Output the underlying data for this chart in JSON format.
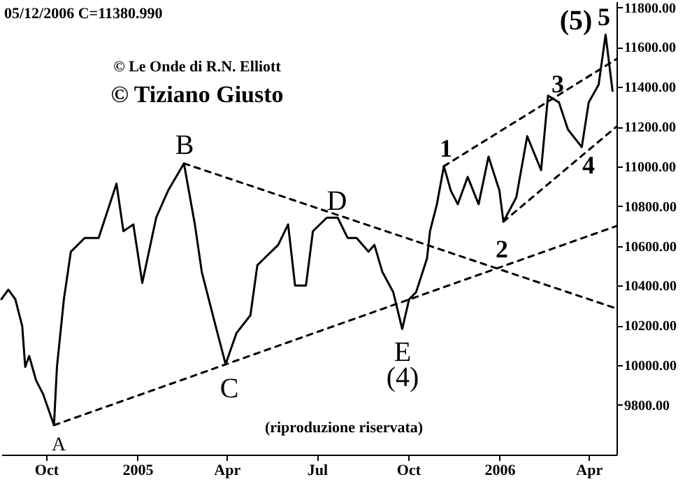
{
  "chart_data": {
    "type": "line",
    "title": "05/12/2006  C=11380.990",
    "annotations": [
      "© Le Onde di R.N. Elliott",
      "© Tiziano Giusto",
      "(riproduzione riservata)",
      "A",
      "B",
      "C",
      "D",
      "E",
      "(4)",
      "1",
      "2",
      "3",
      "4",
      "(5)",
      "5"
    ],
    "xlim": [
      "2004-08-17",
      "2006-04-29"
    ],
    "xticks": [
      {
        "value": "2004-10-01",
        "label": "Oct"
      },
      {
        "value": "2005-01-01",
        "label": "2005"
      },
      {
        "value": "2005-04-01",
        "label": "Apr"
      },
      {
        "value": "2005-07-01",
        "label": "Jul"
      },
      {
        "value": "2005-10-01",
        "label": "Oct"
      },
      {
        "value": "2006-01-01",
        "label": "2006"
      },
      {
        "value": "2006-04-01",
        "label": "Apr"
      }
    ],
    "ylim": [
      9550,
      11830
    ],
    "yticks": [
      {
        "value": 9800,
        "label": "9800.00"
      },
      {
        "value": 10000,
        "label": "10000.00"
      },
      {
        "value": 10200,
        "label": "10200.00"
      },
      {
        "value": 10400,
        "label": "10400.00"
      },
      {
        "value": 10600,
        "label": "10600.00"
      },
      {
        "value": 10800,
        "label": "10800.00"
      },
      {
        "value": 11000,
        "label": "11000.00"
      },
      {
        "value": 11200,
        "label": "11200.00"
      },
      {
        "value": 11400,
        "label": "11400.00"
      },
      {
        "value": 11600,
        "label": "11600.00"
      },
      {
        "value": 11800,
        "label": "11800.00"
      }
    ],
    "grid": false,
    "legend": false,
    "marker": "none",
    "series": [
      {
        "color": "#000000",
        "line_style": "solid",
        "x": [
          "2004-08-17",
          "2004-08-24",
          "2004-08-31",
          "2004-09-07",
          "2004-09-10",
          "2004-09-14",
          "2004-09-21",
          "2004-09-28",
          "2004-10-09",
          "2004-10-12",
          "2004-10-19",
          "2004-10-26",
          "2004-11-02",
          "2004-11-09",
          "2004-11-23",
          "2004-12-11",
          "2004-12-18",
          "2004-12-28",
          "2005-01-06",
          "2005-01-20",
          "2005-02-01",
          "2005-02-17",
          "2005-02-28",
          "2005-03-07",
          "2005-03-21",
          "2005-03-31",
          "2005-04-11",
          "2005-04-25",
          "2005-05-02",
          "2005-05-09",
          "2005-05-23",
          "2005-06-02",
          "2005-06-09",
          "2005-06-20",
          "2005-06-27",
          "2005-07-11",
          "2005-07-22",
          "2005-08-01",
          "2005-08-10",
          "2005-08-22",
          "2005-08-28",
          "2005-09-05",
          "2005-09-16",
          "2005-09-25",
          "2005-10-02",
          "2005-10-09",
          "2005-10-20",
          "2005-10-23",
          "2005-10-30",
          "2005-11-06",
          "2005-11-13",
          "2005-11-20",
          "2005-11-30",
          "2005-12-11",
          "2005-12-21",
          "2006-01-01",
          "2006-01-05",
          "2006-01-18",
          "2006-01-29",
          "2006-02-12",
          "2006-02-19",
          "2006-03-02",
          "2006-03-11",
          "2006-03-25",
          "2006-04-01",
          "2006-04-11",
          "2006-04-18",
          "2006-04-25"
        ],
        "values": [
          10332,
          10380,
          10332,
          10196,
          9991,
          10046,
          9923,
          9855,
          9698,
          9991,
          10332,
          10571,
          10605,
          10640,
          10640,
          10913,
          10674,
          10708,
          10414,
          10742,
          10878,
          11015,
          10708,
          10469,
          10196,
          10005,
          10162,
          10251,
          10503,
          10537,
          10605,
          10708,
          10401,
          10401,
          10674,
          10742,
          10742,
          10640,
          10640,
          10571,
          10605,
          10469,
          10367,
          10182,
          10332,
          10367,
          10537,
          10674,
          10810,
          11001,
          10878,
          10810,
          10947,
          10810,
          11049,
          10878,
          10722,
          10844,
          11152,
          10981,
          11356,
          11322,
          11186,
          11097,
          11322,
          11411,
          11663,
          11380
        ]
      },
      {
        "color": "#000000",
        "line_style": "dashed",
        "x": [
          "2004-10-09",
          "2006-04-29"
        ],
        "values": [
          9698,
          10700
        ]
      },
      {
        "color": "#000000",
        "line_style": "dashed",
        "x": [
          "2005-02-17",
          "2006-04-29"
        ],
        "values": [
          11015,
          10285
        ]
      },
      {
        "color": "#000000",
        "line_style": "dashed",
        "x": [
          "2005-11-06",
          "2006-04-29"
        ],
        "values": [
          11001,
          11540
        ]
      },
      {
        "color": "#000000",
        "line_style": "dashed",
        "x": [
          "2006-01-05",
          "2006-04-29"
        ],
        "values": [
          10722,
          11200
        ]
      }
    ]
  }
}
